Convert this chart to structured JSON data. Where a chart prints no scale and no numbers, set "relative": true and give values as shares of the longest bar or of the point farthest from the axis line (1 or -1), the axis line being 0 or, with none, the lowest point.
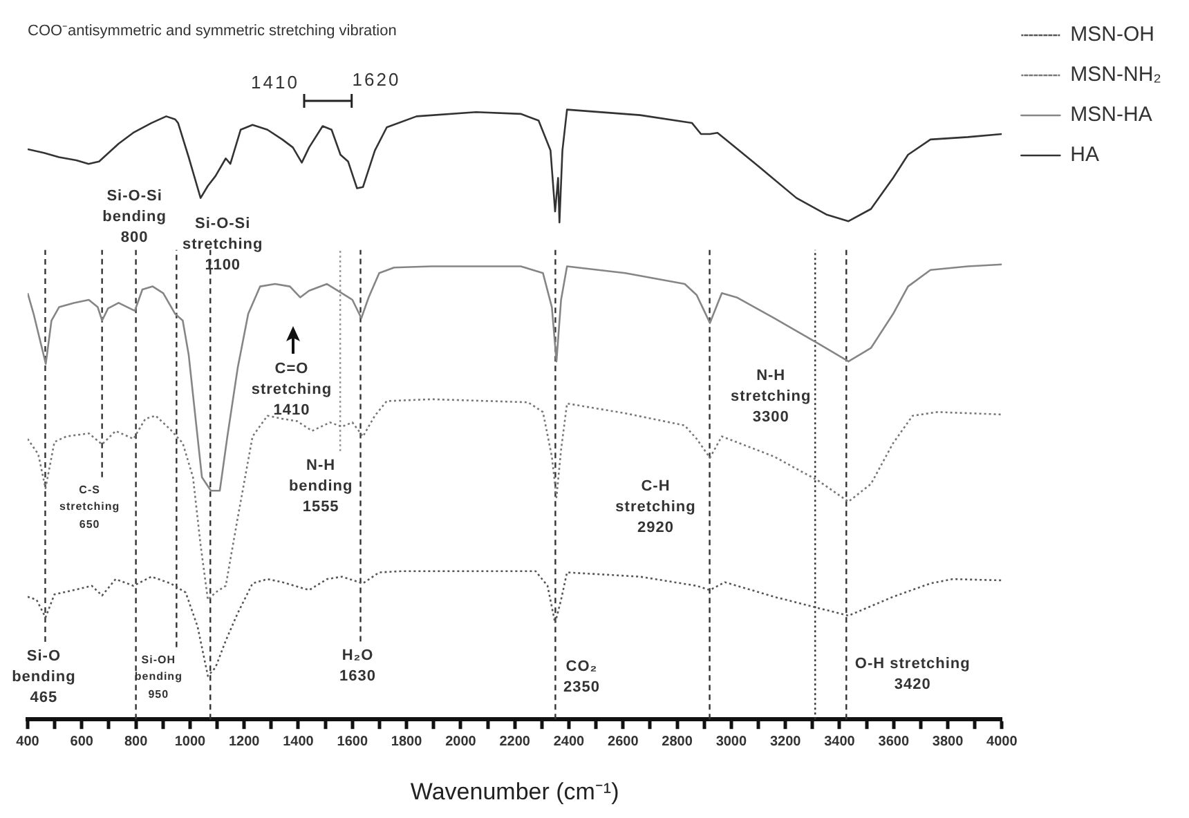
{
  "chart_data": {
    "type": "line",
    "relative": true,
    "title": "COO⁻antisymmetric and symmetric stretching vibration",
    "xlabel": "Wavenumber (cm⁻¹)",
    "xlim": [
      400,
      4000
    ],
    "xticks": [
      400,
      {
        "value": 500,
        "label": null
      },
      600,
      {
        "value": 700,
        "label": null
      },
      800,
      {
        "value": 900,
        "label": null
      },
      1000,
      {
        "value": 1100,
        "label": null
      },
      1200,
      {
        "value": 1300,
        "label": null
      },
      1400,
      {
        "value": 1500,
        "label": null
      },
      1600,
      {
        "value": 1700,
        "label": null
      },
      1800,
      {
        "value": 1900,
        "label": null
      },
      2000,
      {
        "value": 2100,
        "label": null
      },
      2200,
      {
        "value": 2300,
        "label": null
      },
      2400,
      {
        "value": 2500,
        "label": null
      },
      2600,
      {
        "value": 2700,
        "label": null
      },
      2800,
      {
        "value": 2900,
        "label": null
      },
      3000,
      {
        "value": 3100,
        "label": null
      },
      3200,
      {
        "value": 3300,
        "label": null
      },
      3400,
      {
        "value": 3500,
        "label": null
      },
      3600,
      {
        "value": 3700,
        "label": null
      },
      3800,
      {
        "value": 3900,
        "label": null
      },
      4000
    ],
    "marker": "none",
    "legend": "right",
    "series": [
      {
        "name": "MSN-OH",
        "color": "#555555",
        "line_style": "dotted",
        "x": [
          400,
          433,
          466,
          499,
          571,
          637,
          675,
          725,
          791,
          857,
          928,
          984,
          1028,
          1066,
          1094,
          1132,
          1176,
          1231,
          1286,
          1341,
          1440,
          1506,
          1561,
          1639,
          1699,
          1782,
          2277,
          2321,
          2349,
          2371,
          2393,
          2663,
          2872,
          2921,
          2976,
          3158,
          3433,
          3598,
          3736,
          3818,
          4000
        ],
        "values": [
          0.201,
          0.196,
          0.167,
          0.205,
          0.212,
          0.219,
          0.203,
          0.23,
          0.219,
          0.234,
          0.223,
          0.208,
          0.152,
          0.071,
          0.085,
          0.129,
          0.174,
          0.223,
          0.23,
          0.225,
          0.212,
          0.23,
          0.234,
          0.223,
          0.241,
          0.243,
          0.243,
          0.219,
          0.158,
          0.196,
          0.241,
          0.234,
          0.219,
          0.212,
          0.225,
          0.201,
          0.17,
          0.201,
          0.223,
          0.23,
          0.228
        ]
      },
      {
        "name": "MSN-NH₂",
        "color": "#777777",
        "line_style": "dotted",
        "x": [
          400,
          439,
          466,
          499,
          543,
          626,
          675,
          725,
          791,
          835,
          873,
          928,
          973,
          1011,
          1039,
          1066,
          1094,
          1132,
          1176,
          1231,
          1286,
          1341,
          1396,
          1451,
          1517,
          1561,
          1600,
          1639,
          1683,
          1727,
          1892,
          2249,
          2304,
          2337,
          2354,
          2371,
          2393,
          2608,
          2828,
          2872,
          2921,
          2965,
          3158,
          3323,
          3433,
          3516,
          3598,
          3670,
          3763,
          4000
        ],
        "values": [
          0.46,
          0.435,
          0.379,
          0.455,
          0.464,
          0.469,
          0.451,
          0.473,
          0.46,
          0.493,
          0.498,
          0.475,
          0.453,
          0.397,
          0.286,
          0.196,
          0.208,
          0.219,
          0.33,
          0.464,
          0.498,
          0.493,
          0.489,
          0.473,
          0.487,
          0.48,
          0.487,
          0.464,
          0.498,
          0.522,
          0.525,
          0.52,
          0.504,
          0.431,
          0.364,
          0.442,
          0.518,
          0.502,
          0.482,
          0.46,
          0.429,
          0.464,
          0.431,
          0.391,
          0.357,
          0.386,
          0.453,
          0.498,
          0.504,
          0.5
        ]
      },
      {
        "name": "MSN-HA",
        "color": "#858585",
        "line_style": "solid",
        "x": [
          400,
          422,
          467,
          488,
          516,
          571,
          626,
          659,
          675,
          697,
          736,
          796,
          824,
          862,
          901,
          945,
          973,
          995,
          1022,
          1044,
          1077,
          1110,
          1138,
          1176,
          1215,
          1259,
          1314,
          1369,
          1407,
          1440,
          1506,
          1561,
          1600,
          1633,
          1660,
          1699,
          1754,
          1892,
          2222,
          2304,
          2337,
          2354,
          2371,
          2393,
          2608,
          2828,
          2872,
          2921,
          2965,
          3020,
          3158,
          3323,
          3433,
          3516,
          3598,
          3653,
          3736,
          3874,
          4000
        ],
        "values": [
          0.699,
          0.665,
          0.583,
          0.654,
          0.676,
          0.683,
          0.688,
          0.676,
          0.654,
          0.674,
          0.683,
          0.67,
          0.705,
          0.71,
          0.699,
          0.665,
          0.654,
          0.598,
          0.487,
          0.397,
          0.375,
          0.375,
          0.464,
          0.576,
          0.665,
          0.71,
          0.714,
          0.71,
          0.692,
          0.703,
          0.714,
          0.699,
          0.688,
          0.658,
          0.692,
          0.732,
          0.741,
          0.743,
          0.743,
          0.732,
          0.676,
          0.587,
          0.688,
          0.743,
          0.732,
          0.714,
          0.696,
          0.65,
          0.699,
          0.692,
          0.658,
          0.616,
          0.587,
          0.609,
          0.665,
          0.71,
          0.737,
          0.743,
          0.746
        ]
      },
      {
        "name": "HA",
        "color": "#333333",
        "line_style": "solid",
        "x": [
          400,
          460,
          516,
          580,
          625,
          664,
          736,
          790,
          857,
          912,
          945,
          956,
          995,
          1039,
          1066,
          1094,
          1132,
          1149,
          1187,
          1231,
          1286,
          1341,
          1380,
          1413,
          1440,
          1490,
          1523,
          1556,
          1584,
          1617,
          1639,
          1683,
          1727,
          1837,
          2057,
          2222,
          2288,
          2332,
          2349,
          2360,
          2365,
          2376,
          2393,
          2663,
          2855,
          2888,
          2921,
          2949,
          2993,
          3103,
          3241,
          3351,
          3433,
          3516,
          3598,
          3653,
          3736,
          3874,
          4000
        ],
        "values": [
          0.935,
          0.929,
          0.922,
          0.917,
          0.911,
          0.915,
          0.944,
          0.962,
          0.978,
          0.989,
          0.984,
          0.978,
          0.922,
          0.855,
          0.875,
          0.891,
          0.92,
          0.911,
          0.967,
          0.975,
          0.967,
          0.951,
          0.938,
          0.913,
          0.938,
          0.973,
          0.967,
          0.926,
          0.915,
          0.871,
          0.873,
          0.933,
          0.971,
          0.989,
          0.996,
          0.993,
          0.982,
          0.933,
          0.833,
          0.888,
          0.815,
          0.933,
          1,
          0.991,
          0.978,
          0.96,
          0.96,
          0.962,
          0.946,
          0.906,
          0.855,
          0.828,
          0.817,
          0.837,
          0.888,
          0.926,
          0.951,
          0.955,
          0.96
        ]
      }
    ],
    "ref_lines": [
      {
        "axis": "x",
        "value": 465,
        "color": "#333333",
        "line_style": "dashed",
        "label": "Si-O\nbending\n465"
      },
      {
        "axis": "x",
        "value": 675,
        "color": "#333333",
        "line_style": "dashed",
        "label": "C-S\nstretching\n650"
      },
      {
        "axis": "x",
        "value": 800,
        "color": "#333333",
        "line_style": "dashed",
        "label": "Si-O-Si\nbending\n800"
      },
      {
        "axis": "x",
        "value": 950,
        "color": "#333333",
        "line_style": "dashed",
        "label": "Si-OH\nbending\n950"
      },
      {
        "axis": "x",
        "value": 1075,
        "color": "#333333",
        "line_style": "dashed",
        "label": "Si-O-Si\nstretching\n1100"
      },
      {
        "axis": "x",
        "value": 1555,
        "color": "#999999",
        "line_style": "dotted",
        "label": "N-H\nbending\n1555"
      },
      {
        "axis": "x",
        "value": 1630,
        "color": "#333333",
        "line_style": "dashed",
        "label": "H₂O\n1630"
      },
      {
        "axis": "x",
        "value": 2350,
        "color": "#333333",
        "line_style": "dashed",
        "label": "CO₂\n2350"
      },
      {
        "axis": "x",
        "value": 2920,
        "color": "#333333",
        "line_style": "dashed",
        "label": "C-H\nstretching\n2920"
      },
      {
        "axis": "x",
        "value": 3310,
        "color": "#333333",
        "line_style": "dotted",
        "label": "N-H\nstretching\n3300"
      },
      {
        "axis": "x",
        "value": 3425,
        "color": "#333333",
        "line_style": "dashed",
        "label": "O-H stretching\n3420"
      }
    ],
    "annotations": [
      "1410",
      "1620",
      "C=O\nstretching\n1410"
    ]
  }
}
